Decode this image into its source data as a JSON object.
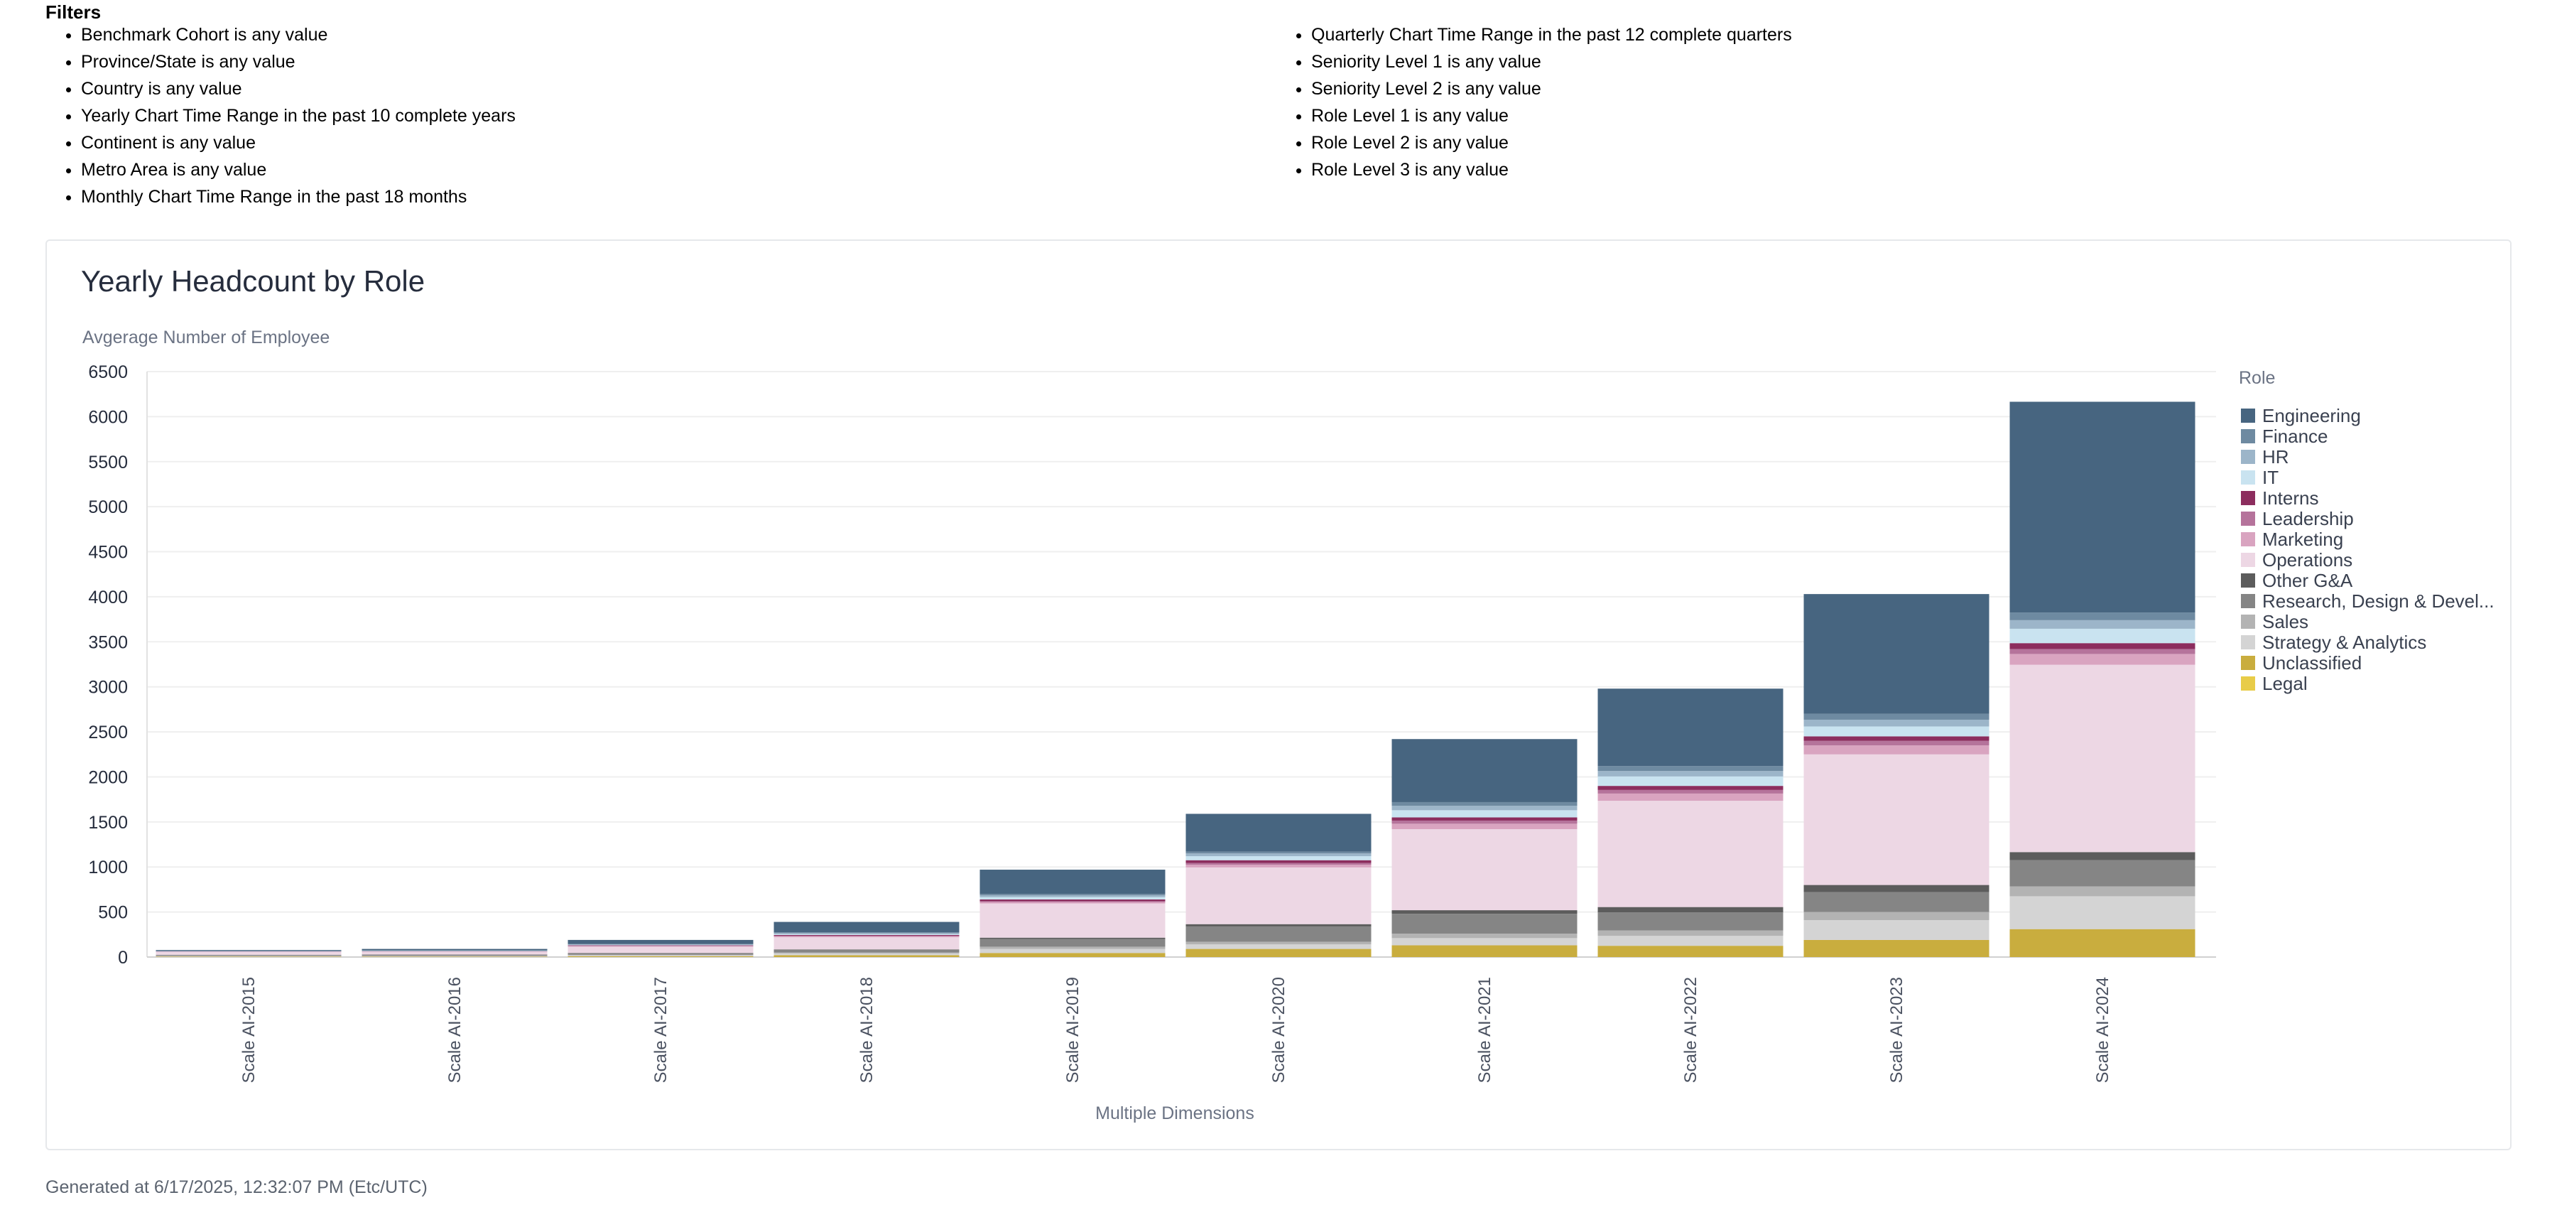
{
  "filters": {
    "title": "Filters",
    "column1": [
      "Benchmark Cohort is any value",
      "Province/State is any value",
      "Country is any value",
      "Yearly Chart Time Range in the past 10 complete years",
      "Continent is any value",
      "Metro Area is any value",
      "Monthly Chart Time Range in the past 18 months"
    ],
    "column2": [
      "Quarterly Chart Time Range in the past 12 complete quarters",
      "Seniority Level 1 is any value",
      "Seniority Level 2 is any value",
      "Role Level 1 is any value",
      "Role Level 2 is any value",
      "Role Level 3 is any value"
    ]
  },
  "footer": {
    "generated": "Generated at 6/17/2025, 12:32:07 PM (Etc/UTC)"
  },
  "chart_data": {
    "type": "bar",
    "stacked": true,
    "title": "Yearly Headcount by Role",
    "ylabel": "Avgerage Number of Employee",
    "xlabel": "Multiple Dimensions",
    "ylim": [
      0,
      6500
    ],
    "yticks": [
      0,
      500,
      1000,
      1500,
      2000,
      2500,
      3000,
      3500,
      4000,
      4500,
      5000,
      5500,
      6000,
      6500
    ],
    "legend_title": "Role",
    "legend_position": "right",
    "categories": [
      "Scale AI-2015",
      "Scale AI-2016",
      "Scale AI-2017",
      "Scale AI-2018",
      "Scale AI-2019",
      "Scale AI-2020",
      "Scale AI-2021",
      "Scale AI-2022",
      "Scale AI-2023",
      "Scale AI-2024"
    ],
    "series": [
      {
        "name": "Unclassified",
        "color": "#c9ad3e",
        "values": [
          5,
          5,
          10,
          20,
          45,
          90,
          130,
          125,
          190,
          310
        ]
      },
      {
        "name": "Strategy & Analytics",
        "color": "#d4d4d4",
        "values": [
          5,
          5,
          10,
          20,
          45,
          50,
          80,
          110,
          220,
          365
        ]
      },
      {
        "name": "Sales",
        "color": "#b3b3b3",
        "values": [
          3,
          3,
          5,
          10,
          25,
          30,
          50,
          60,
          90,
          110
        ]
      },
      {
        "name": "Research, Design & Development",
        "color": "#858585",
        "values": [
          10,
          12,
          15,
          30,
          85,
          170,
          220,
          200,
          220,
          290
        ]
      },
      {
        "name": "Other G&A",
        "color": "#5c5c5c",
        "values": [
          2,
          3,
          5,
          5,
          15,
          25,
          40,
          60,
          80,
          90
        ]
      },
      {
        "name": "Operations",
        "color": "#edd7e4",
        "values": [
          30,
          30,
          70,
          135,
          380,
          630,
          900,
          1180,
          1450,
          2080
        ]
      },
      {
        "name": "Marketing",
        "color": "#d9a4c0",
        "values": [
          2,
          2,
          5,
          10,
          15,
          30,
          60,
          80,
          100,
          120
        ]
      },
      {
        "name": "Leadership",
        "color": "#b5739b",
        "values": [
          2,
          2,
          5,
          5,
          10,
          20,
          35,
          40,
          50,
          55
        ]
      },
      {
        "name": "Interns",
        "color": "#8c2d5e",
        "values": [
          2,
          2,
          5,
          10,
          20,
          30,
          35,
          45,
          50,
          65
        ]
      },
      {
        "name": "IT",
        "color": "#c9e3f0",
        "values": [
          2,
          3,
          5,
          10,
          25,
          45,
          80,
          105,
          110,
          160
        ]
      },
      {
        "name": "HR",
        "color": "#9cb5c9",
        "values": [
          2,
          3,
          5,
          10,
          20,
          30,
          50,
          60,
          75,
          95
        ]
      },
      {
        "name": "Finance",
        "color": "#6e8aa1",
        "values": [
          3,
          3,
          5,
          10,
          15,
          20,
          40,
          55,
          65,
          85
        ]
      },
      {
        "name": "Engineering",
        "color": "#476580",
        "values": [
          10,
          17,
          45,
          115,
          270,
          420,
          700,
          860,
          1330,
          2340
        ]
      },
      {
        "name": "Legal",
        "color": "#e8cc48",
        "values": [
          0,
          0,
          0,
          0,
          0,
          0,
          0,
          0,
          0,
          0
        ]
      }
    ],
    "legend_order": [
      "Engineering",
      "Finance",
      "HR",
      "IT",
      "Interns",
      "Leadership",
      "Marketing",
      "Operations",
      "Other G&A",
      "Research, Design & Devel...",
      "Sales",
      "Strategy & Analytics",
      "Unclassified",
      "Legal"
    ]
  }
}
